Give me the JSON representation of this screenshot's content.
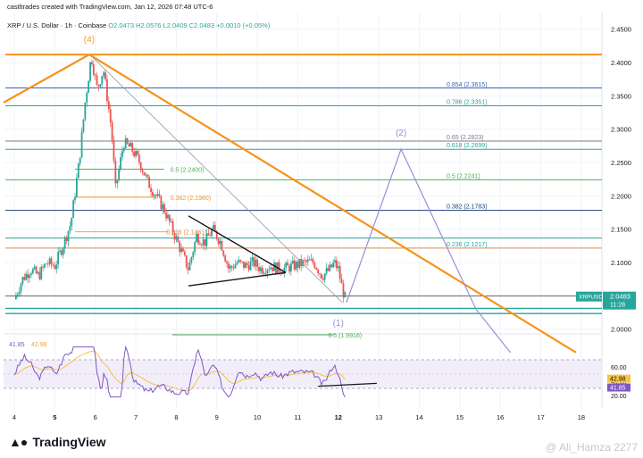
{
  "header": {
    "credit": "castltrades created with TradingView.com, Jan 12, 2026 07:48 UTC-6",
    "symbol": "XRP / U.S. Dollar · 1h · Coinbase",
    "ohlc": "O2.0473 H2.0576 L2.0409 C2.0483 +0.0010 (+0.05%)"
  },
  "footer": {
    "brand": "TradingView",
    "watermark": "@ Ali_Hamza 2277"
  },
  "colors": {
    "up": "#26a69a",
    "down": "#ef5350",
    "orange": "#f7931a",
    "proj": "#9b8fd6",
    "rsi": "#7e57c2",
    "rsi_ma": "#f6c343"
  },
  "chart_data": {
    "type": "candlestick",
    "symbol": "XRPUSD",
    "timeframe": "1h",
    "x_ticks": [
      "4",
      "5",
      "6",
      "7",
      "8",
      "9",
      "10",
      "11",
      "12",
      "13",
      "14",
      "15",
      "16",
      "17",
      "18"
    ],
    "y_ticks": [
      "2.4500",
      "2.4000",
      "2.3500",
      "2.3000",
      "2.2500",
      "2.2000",
      "2.1500",
      "2.1000",
      "2.0500",
      "2.0000"
    ],
    "ylim": [
      1.955,
      2.46
    ],
    "price_path": [
      [
        4.0,
        2.045
      ],
      [
        4.2,
        2.075
      ],
      [
        4.4,
        2.09
      ],
      [
        4.6,
        2.08
      ],
      [
        4.8,
        2.1
      ],
      [
        5.0,
        2.095
      ],
      [
        5.2,
        2.125
      ],
      [
        5.4,
        2.16
      ],
      [
        5.6,
        2.25
      ],
      [
        5.75,
        2.34
      ],
      [
        5.9,
        2.41
      ],
      [
        6.05,
        2.36
      ],
      [
        6.2,
        2.39
      ],
      [
        6.4,
        2.3
      ],
      [
        6.5,
        2.21
      ],
      [
        6.7,
        2.28
      ],
      [
        6.9,
        2.27
      ],
      [
        7.1,
        2.25
      ],
      [
        7.3,
        2.22
      ],
      [
        7.5,
        2.2
      ],
      [
        7.7,
        2.18
      ],
      [
        7.9,
        2.15
      ],
      [
        8.1,
        2.12
      ],
      [
        8.3,
        2.09
      ],
      [
        8.5,
        2.14
      ],
      [
        8.7,
        2.13
      ],
      [
        8.9,
        2.15
      ],
      [
        9.1,
        2.13
      ],
      [
        9.3,
        2.09
      ],
      [
        9.5,
        2.1
      ],
      [
        9.7,
        2.095
      ],
      [
        9.9,
        2.1
      ],
      [
        10.1,
        2.09
      ],
      [
        10.3,
        2.095
      ],
      [
        10.6,
        2.09
      ],
      [
        10.9,
        2.095
      ],
      [
        11.2,
        2.1
      ],
      [
        11.4,
        2.1
      ],
      [
        11.6,
        2.08
      ],
      [
        11.8,
        2.09
      ],
      [
        11.9,
        2.1
      ],
      [
        12.0,
        2.09
      ],
      [
        12.1,
        2.06
      ],
      [
        12.2,
        2.04
      ]
    ],
    "last_price": {
      "label": "XRPUSD",
      "value": "2.0483",
      "time": "11:28"
    },
    "fib_levels_left": [
      {
        "label": "0.5 (2.2400)",
        "value": 2.24
      },
      {
        "label": "0.382 (2.1980)",
        "value": 2.198
      },
      {
        "label": "0.236 (2.1461)",
        "value": 2.1461
      }
    ],
    "fib_levels_right": [
      {
        "label": "0.854 (2.3615)",
        "value": 2.3615
      },
      {
        "label": "0.786 (2.3351)",
        "value": 2.3351
      },
      {
        "label": "0.65 (2.2823)",
        "value": 2.2823
      },
      {
        "label": "0.618 (2.2699)",
        "value": 2.2699
      },
      {
        "label": "0.5 (2.2241)",
        "value": 2.2241
      },
      {
        "label": "0.382 (2.1783)",
        "value": 2.1783
      },
      {
        "label": "0.236 (2.1217)",
        "value": 2.1217
      }
    ],
    "fib_lower": {
      "label": "0.5 (1.9916)",
      "value": 1.9916
    },
    "wave_labels": [
      {
        "label": "(4)",
        "x": 5.85,
        "y": 2.43
      },
      {
        "label": "(1)",
        "x": 12.0,
        "y": 2.005
      },
      {
        "label": "(2)",
        "x": 13.55,
        "y": 2.29
      }
    ],
    "projection": [
      [
        12.2,
        2.04
      ],
      [
        13.55,
        2.27
      ],
      [
        15.4,
        2.03
      ],
      [
        16.25,
        1.965
      ]
    ],
    "rsi": {
      "value": "41.85",
      "ma": "42.98",
      "y_ticks": [
        "60.00",
        "40.00",
        "20.00"
      ],
      "ylim": [
        15,
        95
      ]
    }
  }
}
